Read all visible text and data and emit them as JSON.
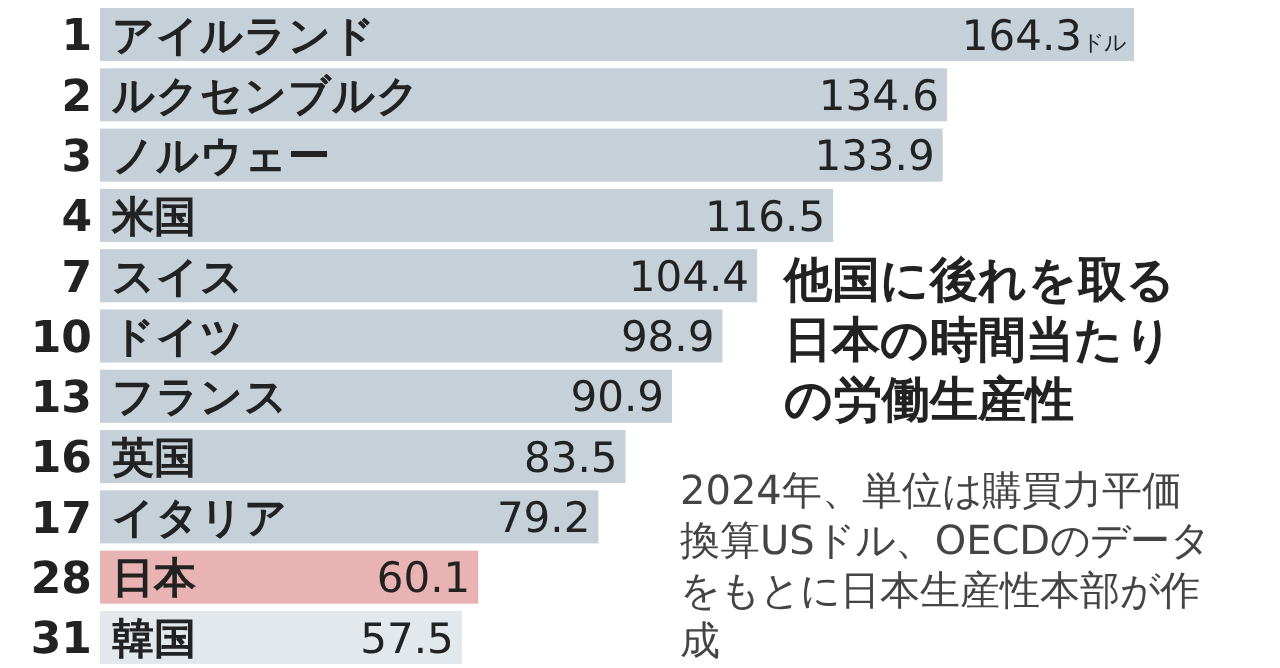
{
  "chart_data": {
    "type": "bar",
    "orientation": "horizontal",
    "title": "他国に後れを取る日本の時間当たりの労働生産性",
    "categories": [
      "1 アイルランド",
      "2 ルクセンブルク",
      "3 ノルウェー",
      "4 米国",
      "7 スイス",
      "10 ドイツ",
      "13 フランス",
      "16 英国",
      "17 イタリア",
      "28 日本",
      "31 韓国"
    ],
    "values": [
      164.3,
      134.6,
      133.9,
      116.5,
      104.4,
      98.9,
      90.9,
      83.5,
      79.2,
      60.1,
      57.5
    ],
    "value_labels": [
      "164.3ドル",
      "134.6",
      "133.9",
      "116.5",
      "104.4",
      "98.9",
      "90.9",
      "83.5",
      "79.2",
      "60.1",
      "57.5"
    ],
    "colors": [
      "#c5d0d9",
      "#c5d0d9",
      "#c5d0d9",
      "#c5d0d9",
      "#c5d0d9",
      "#c5d0d9",
      "#c5d0d9",
      "#c5d0d9",
      "#c5d0d9",
      "#e9b3b3",
      "#e3e8ec"
    ],
    "annotations": [
      "2024年、単位は購買力平価換算USドル、OECDのデータをもとに日本生産性本部が作成"
    ]
  }
}
